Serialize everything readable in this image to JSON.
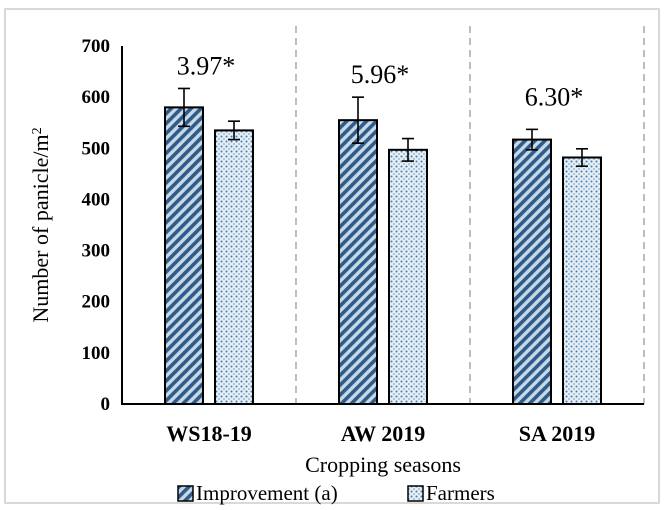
{
  "chart_data": {
    "type": "bar",
    "categories": [
      "WS18-19",
      "AW 2019",
      "SA 2019"
    ],
    "series": [
      {
        "name": "Improvement (a)",
        "values": [
          580,
          555,
          517
        ],
        "errors": [
          37,
          45,
          20
        ],
        "pattern": "diagonal-hatch",
        "color": "#2e5c8a"
      },
      {
        "name": "Farmers",
        "values": [
          535,
          497,
          482
        ],
        "errors": [
          18,
          22,
          17
        ],
        "pattern": "dots",
        "color": "#4a7fae"
      }
    ],
    "annotations": [
      "3.97*",
      "5.96*",
      "6.30*"
    ],
    "xlabel": "Cropping seasons",
    "ylabel": "Number of panicle/m",
    "ylabel_superscript": "2",
    "ylim": [
      0,
      700
    ],
    "yticks": [
      "0",
      "100",
      "200",
      "300",
      "400",
      "500",
      "600",
      "700"
    ],
    "grid": "vertical dashed separators",
    "legend_position": "bottom"
  }
}
